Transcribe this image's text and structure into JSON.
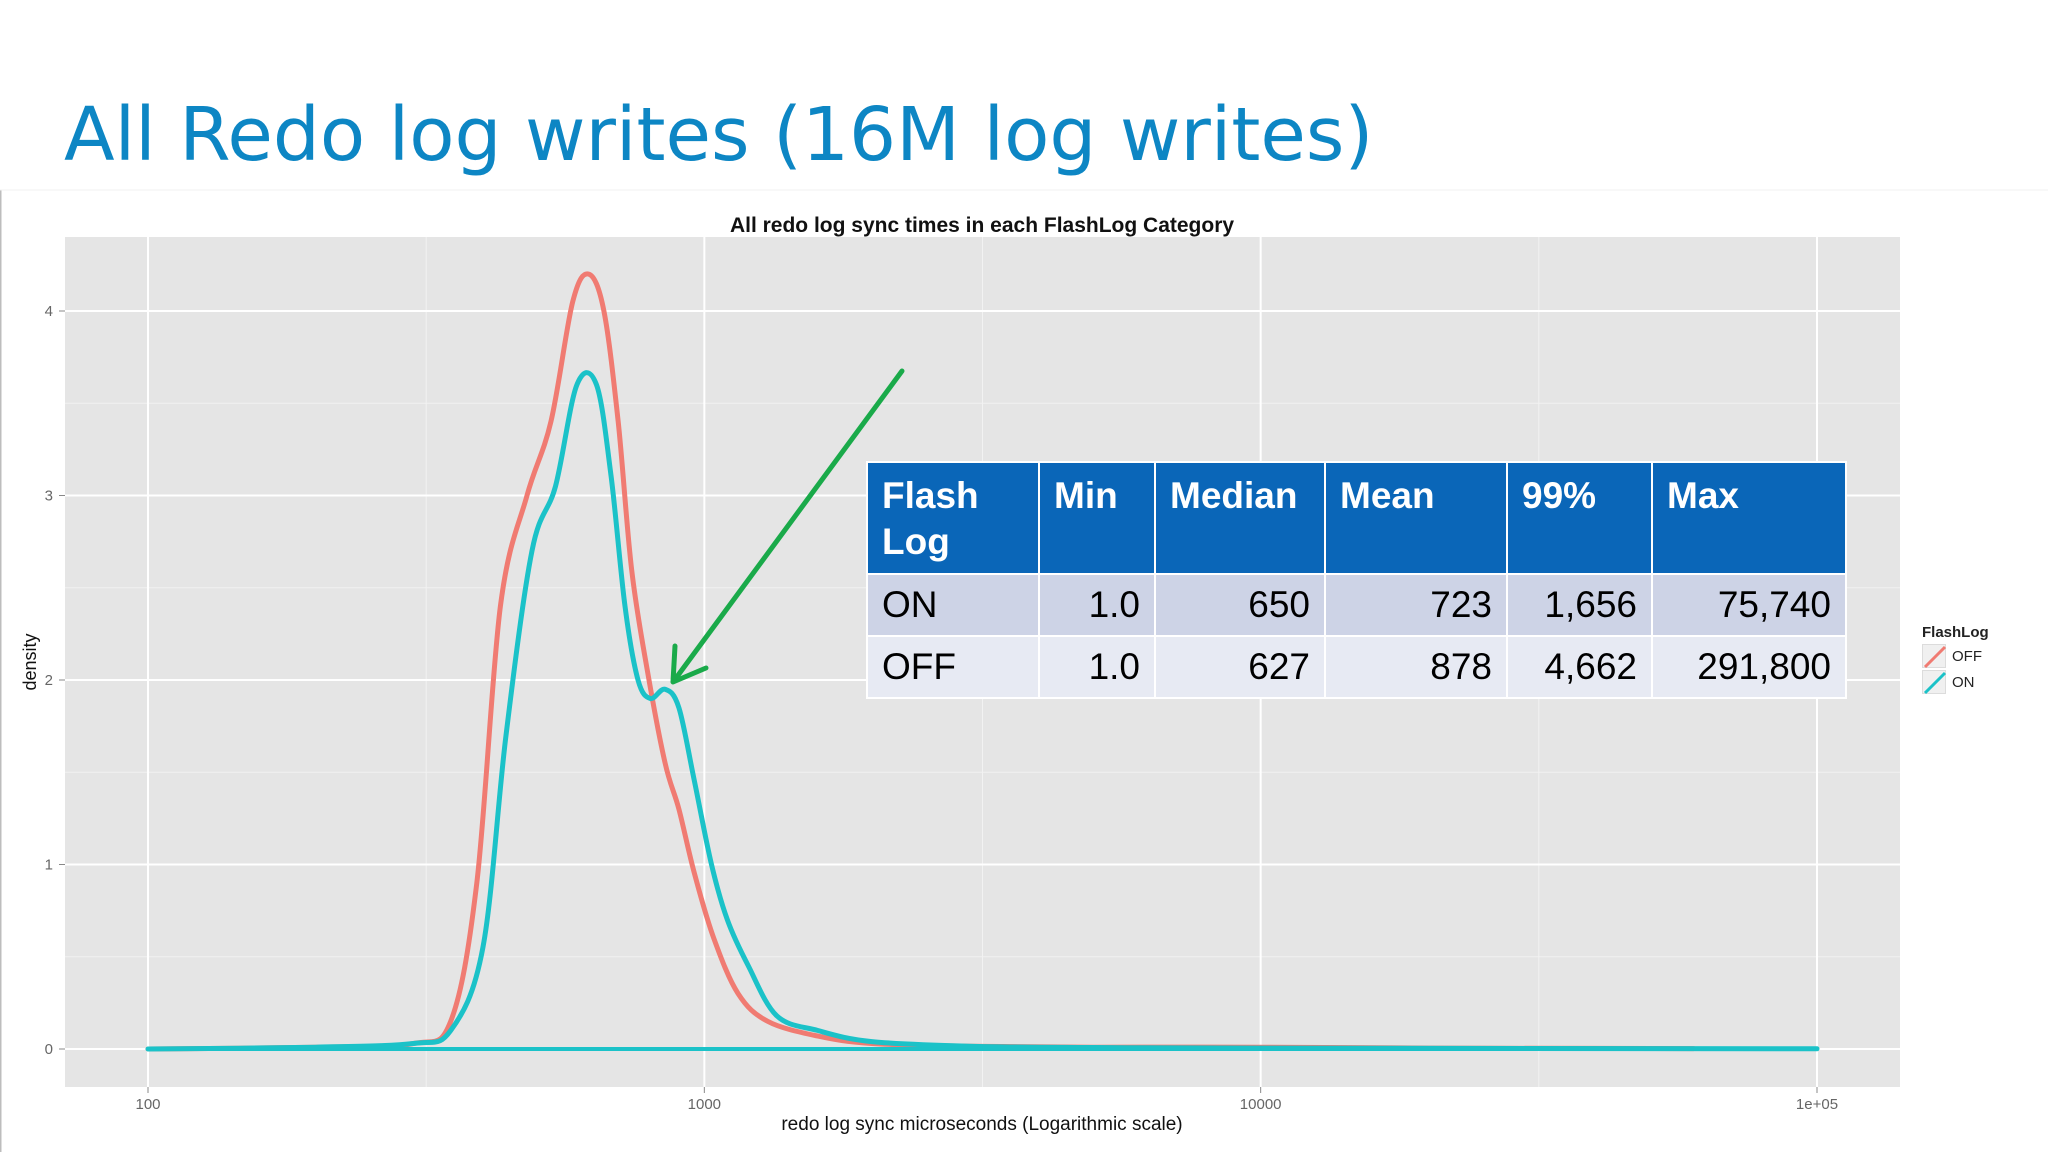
{
  "slide": {
    "title": "All Redo log writes (16M log writes)"
  },
  "colors": {
    "title": "#0d86c4",
    "panel_bg": "#e5e5e5",
    "grid": "#ffffff",
    "off_series": "#f07b72",
    "on_series": "#1bc2c8",
    "arrow": "#1aaa4a",
    "table_header": "#0a66b8"
  },
  "chart_data": {
    "type": "line",
    "title": "All redo log sync times in each FlashLog Category",
    "xlabel": "redo log sync microseconds (Logarithmic scale)",
    "ylabel": "density",
    "x_scale": "log10",
    "xlim": [
      100,
      100000
    ],
    "ylim": [
      0,
      4.3
    ],
    "x_ticks": [
      100,
      1000,
      10000,
      100000
    ],
    "x_tick_labels": [
      "100",
      "1000",
      "10000",
      "1e+05"
    ],
    "y_ticks": [
      0,
      1,
      2,
      3,
      4
    ],
    "y_tick_labels": [
      "0",
      "1",
      "2",
      "3",
      "4"
    ],
    "grid": true,
    "legend": {
      "title": "FlashLog",
      "position": "right"
    },
    "series": [
      {
        "name": "OFF",
        "color": "#f07b72",
        "x": [
          100,
          200,
          300,
          350,
          390,
          430,
          480,
          530,
          580,
          620,
          660,
          700,
          740,
          790,
          850,
          900,
          960,
          1040,
          1150,
          1300,
          1600,
          2000,
          3000,
          5000,
          10000,
          20000,
          40000,
          60000
        ],
        "y": [
          0,
          0.01,
          0.03,
          0.15,
          0.9,
          2.4,
          3.0,
          3.4,
          4.05,
          4.2,
          4.0,
          3.4,
          2.6,
          2.05,
          1.55,
          1.3,
          0.95,
          0.6,
          0.3,
          0.15,
          0.07,
          0.03,
          0.015,
          0.01,
          0.01,
          0.005,
          0.003,
          0.002
        ]
      },
      {
        "name": "ON",
        "color": "#1bc2c8",
        "x": [
          100,
          200,
          300,
          350,
          400,
          440,
          490,
          540,
          590,
          640,
          680,
          720,
          760,
          800,
          850,
          900,
          960,
          1030,
          1100,
          1200,
          1350,
          1600,
          2000,
          3000,
          5000,
          10000,
          100000
        ],
        "y": [
          0,
          0.01,
          0.03,
          0.1,
          0.55,
          1.7,
          2.7,
          3.05,
          3.6,
          3.6,
          3.1,
          2.4,
          2.0,
          1.9,
          1.95,
          1.85,
          1.45,
          1.0,
          0.7,
          0.45,
          0.18,
          0.1,
          0.04,
          0.015,
          0.008,
          0.005,
          0.001
        ]
      }
    ],
    "annotation": {
      "type": "arrow",
      "points_to": {
        "x": 850,
        "y": 1.95
      }
    }
  },
  "table": {
    "headers": [
      "Flash Log",
      "Min",
      "Median",
      "Mean",
      "99%",
      "Max"
    ],
    "rows": [
      [
        "ON",
        "1.0",
        "650",
        "723",
        "1,656",
        "75,740"
      ],
      [
        "OFF",
        "1.0",
        "627",
        "878",
        "4,662",
        "291,800"
      ]
    ]
  }
}
